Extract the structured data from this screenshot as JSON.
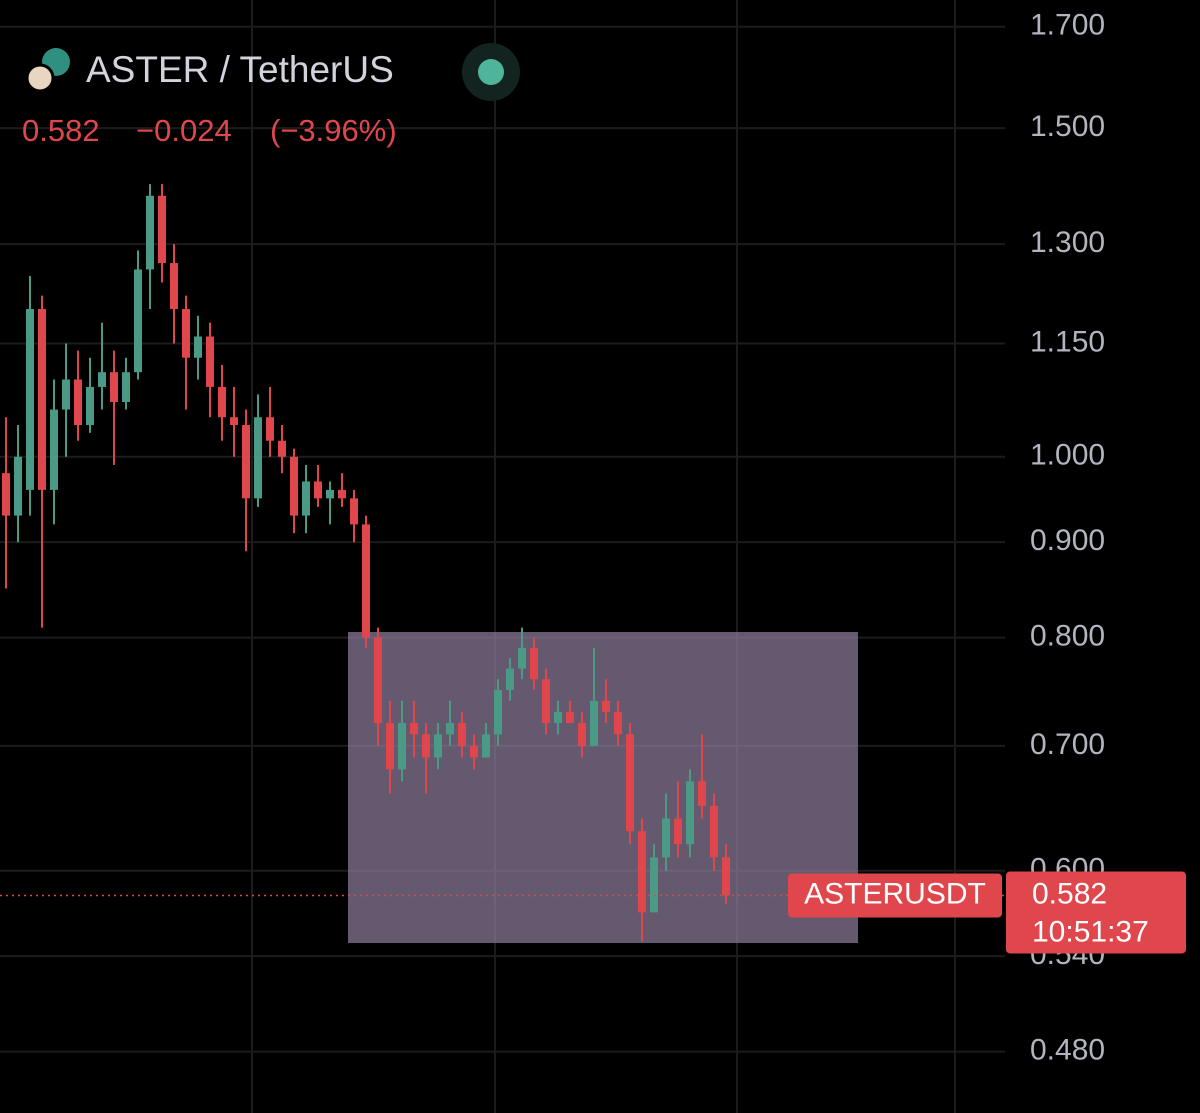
{
  "chart_data": {
    "type": "candlestick",
    "title": "ASTER / TetherUS",
    "last_price": "0.582",
    "change": "−0.024",
    "change_pct": "(−3.96%)",
    "symbol": "ASTERUSDT",
    "countdown": "10:51:37",
    "up_color": "#4a9a86",
    "down_color": "#e0474c",
    "log_scale": true,
    "grid": true,
    "ylim": [
      0.445,
      1.757
    ],
    "yticks": [
      {
        "value": 1.7,
        "label": "1.700"
      },
      {
        "value": 1.5,
        "label": "1.500"
      },
      {
        "value": 1.3,
        "label": "1.300"
      },
      {
        "value": 1.15,
        "label": "1.150"
      },
      {
        "value": 1.0,
        "label": "1.000"
      },
      {
        "value": 0.9,
        "label": "0.900"
      },
      {
        "value": 0.8,
        "label": "0.800"
      },
      {
        "value": 0.7,
        "label": "0.700"
      },
      {
        "value": 0.6,
        "label": "0.600"
      },
      {
        "value": 0.54,
        "label": "0.540"
      },
      {
        "value": 0.48,
        "label": "0.480"
      }
    ],
    "open": [
      0.98,
      0.93,
      0.96,
      1.2,
      0.96,
      1.06,
      1.1,
      1.04,
      1.09,
      1.11,
      1.07,
      1.11,
      1.26,
      1.38,
      1.27,
      1.2,
      1.13,
      1.16,
      1.09,
      1.05,
      1.04,
      0.95,
      1.05,
      1.02,
      1.0,
      0.93,
      0.97,
      0.95,
      0.96,
      0.95,
      0.92,
      0.8,
      0.72,
      0.68,
      0.72,
      0.71,
      0.69,
      0.71,
      0.72,
      0.7,
      0.69,
      0.71,
      0.75,
      0.77,
      0.79,
      0.76,
      0.72,
      0.73,
      0.72,
      0.7,
      0.74,
      0.73,
      0.71,
      0.63,
      0.57,
      0.61,
      0.64,
      0.62,
      0.67,
      0.65,
      0.61
    ],
    "high": [
      1.05,
      1.04,
      1.25,
      1.22,
      1.1,
      1.15,
      1.14,
      1.13,
      1.18,
      1.14,
      1.13,
      1.29,
      1.4,
      1.4,
      1.3,
      1.22,
      1.19,
      1.18,
      1.12,
      1.09,
      1.06,
      1.08,
      1.09,
      1.04,
      1.01,
      0.99,
      0.99,
      0.97,
      0.98,
      0.96,
      0.93,
      0.81,
      0.74,
      0.74,
      0.74,
      0.72,
      0.72,
      0.74,
      0.73,
      0.71,
      0.72,
      0.76,
      0.78,
      0.81,
      0.8,
      0.77,
      0.74,
      0.74,
      0.73,
      0.79,
      0.76,
      0.74,
      0.72,
      0.64,
      0.62,
      0.66,
      0.67,
      0.68,
      0.71,
      0.66,
      0.62
    ],
    "low": [
      0.85,
      0.9,
      0.93,
      0.81,
      0.92,
      1.0,
      1.02,
      1.03,
      1.06,
      0.99,
      1.06,
      1.1,
      1.2,
      1.24,
      1.15,
      1.06,
      1.1,
      1.05,
      1.02,
      1.0,
      0.89,
      0.94,
      1.0,
      0.98,
      0.91,
      0.91,
      0.94,
      0.92,
      0.94,
      0.9,
      0.79,
      0.7,
      0.66,
      0.67,
      0.69,
      0.66,
      0.68,
      0.7,
      0.69,
      0.68,
      0.69,
      0.7,
      0.74,
      0.76,
      0.75,
      0.71,
      0.71,
      0.72,
      0.69,
      0.7,
      0.72,
      0.7,
      0.62,
      0.55,
      0.57,
      0.6,
      0.61,
      0.61,
      0.64,
      0.6,
      0.576
    ],
    "close": [
      0.93,
      1.0,
      1.2,
      0.96,
      1.06,
      1.1,
      1.04,
      1.09,
      1.11,
      1.07,
      1.11,
      1.26,
      1.38,
      1.27,
      1.2,
      1.13,
      1.16,
      1.09,
      1.05,
      1.04,
      0.95,
      1.05,
      1.02,
      1.0,
      0.93,
      0.97,
      0.95,
      0.96,
      0.95,
      0.92,
      0.8,
      0.72,
      0.68,
      0.72,
      0.71,
      0.69,
      0.71,
      0.72,
      0.7,
      0.69,
      0.71,
      0.75,
      0.77,
      0.79,
      0.76,
      0.72,
      0.73,
      0.72,
      0.7,
      0.74,
      0.73,
      0.71,
      0.63,
      0.57,
      0.61,
      0.64,
      0.62,
      0.67,
      0.65,
      0.61,
      0.582
    ]
  }
}
